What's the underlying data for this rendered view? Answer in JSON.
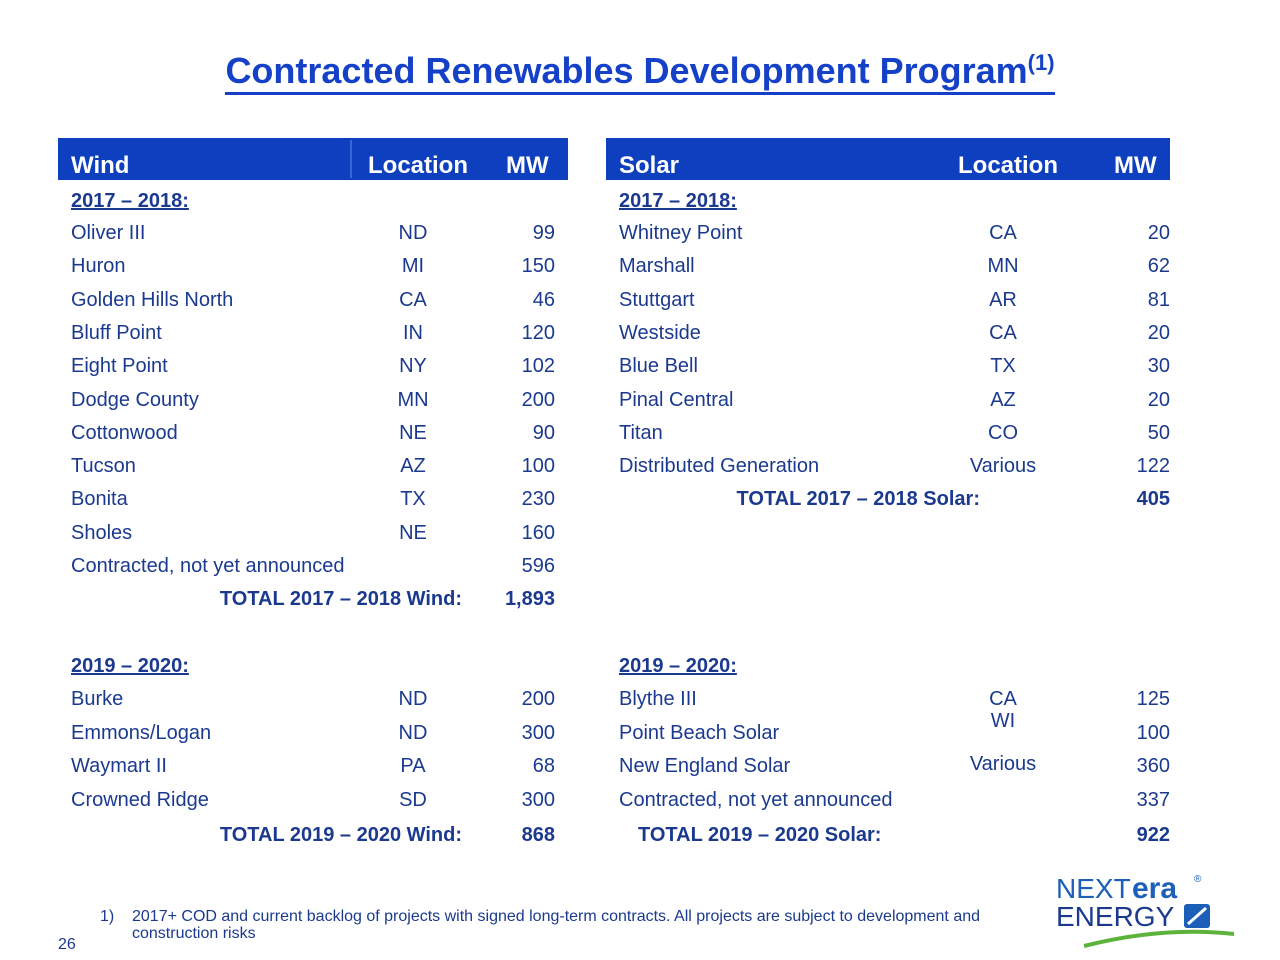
{
  "title": {
    "text": "Contracted Renewables Development Program",
    "footnote_ref": "(1)"
  },
  "wind": {
    "headers": {
      "name": "Wind",
      "location": "Location",
      "mw": "MW"
    },
    "sec1_label": "2017 – 2018:",
    "sec1_rows": [
      {
        "name": "Oliver III",
        "loc": "ND",
        "mw": "99"
      },
      {
        "name": "Huron",
        "loc": "MI",
        "mw": "150"
      },
      {
        "name": "Golden Hills North",
        "loc": "CA",
        "mw": "46"
      },
      {
        "name": "Bluff Point",
        "loc": "IN",
        "mw": "120"
      },
      {
        "name": "Eight Point",
        "loc": "NY",
        "mw": "102"
      },
      {
        "name": "Dodge County",
        "loc": "MN",
        "mw": "200"
      },
      {
        "name": "Cottonwood",
        "loc": "NE",
        "mw": "90"
      },
      {
        "name": "Tucson",
        "loc": "AZ",
        "mw": "100"
      },
      {
        "name": "Bonita",
        "loc": "TX",
        "mw": "230"
      },
      {
        "name": "Sholes",
        "loc": "NE",
        "mw": "160"
      },
      {
        "name": "Contracted, not yet announced",
        "loc": "",
        "mw": "596"
      }
    ],
    "sec1_total": {
      "label": "TOTAL 2017 – 2018 Wind:",
      "value": "1,893"
    },
    "sec2_label": "2019 – 2020:",
    "sec2_rows": [
      {
        "name": "Burke",
        "loc": "ND",
        "mw": "200"
      },
      {
        "name": "Emmons/Logan",
        "loc": "ND",
        "mw": "300"
      },
      {
        "name": "Waymart II",
        "loc": "PA",
        "mw": "68"
      },
      {
        "name": "Crowned Ridge",
        "loc": "SD",
        "mw": "300"
      }
    ],
    "sec2_total": {
      "label": "TOTAL 2019 – 2020 Wind:",
      "value": "868"
    }
  },
  "solar": {
    "headers": {
      "name": "Solar",
      "location": "Location",
      "mw": "MW"
    },
    "sec1_label": "2017 – 2018:",
    "sec1_rows": [
      {
        "name": "Whitney Point",
        "loc": "CA",
        "mw": "20"
      },
      {
        "name": "Marshall",
        "loc": "MN",
        "mw": "62"
      },
      {
        "name": "Stuttgart",
        "loc": "AR",
        "mw": "81"
      },
      {
        "name": "Westside",
        "loc": "CA",
        "mw": "20"
      },
      {
        "name": "Blue Bell",
        "loc": "TX",
        "mw": "30"
      },
      {
        "name": "Pinal Central",
        "loc": "AZ",
        "mw": "20"
      },
      {
        "name": "Titan",
        "loc": "CO",
        "mw": "50"
      },
      {
        "name": "Distributed Generation",
        "loc": "Various",
        "mw": "122"
      }
    ],
    "sec1_total": {
      "label": "TOTAL 2017 – 2018 Solar:",
      "value": "405"
    },
    "sec2_label": "2019 – 2020:",
    "sec2_rows": [
      {
        "name": "Blythe III",
        "loc": "CA",
        "mw": "125"
      },
      {
        "name": "Point Beach Solar",
        "loc": "WI",
        "mw": "100"
      },
      {
        "name": "New England Solar",
        "loc": "Various",
        "mw": "360"
      },
      {
        "name": "Contracted, not yet announced",
        "loc": "",
        "mw": "337"
      }
    ],
    "sec2_total": {
      "label": "TOTAL 2019 – 2020 Solar:",
      "value": "922"
    }
  },
  "footnote": {
    "number": "1)",
    "text": "2017+ COD and current backlog of projects with signed long-term contracts.  All projects are subject to development and construction risks"
  },
  "page_number": "26",
  "logo": {
    "part1": "NEXT",
    "part2": "era",
    "part3": "ENERGY",
    "mark": "®"
  },
  "colors": {
    "header_bg": "#0d3fbf",
    "text": "#1b3a8f",
    "title": "#1540c8",
    "logo_green": "#5bb33b"
  }
}
